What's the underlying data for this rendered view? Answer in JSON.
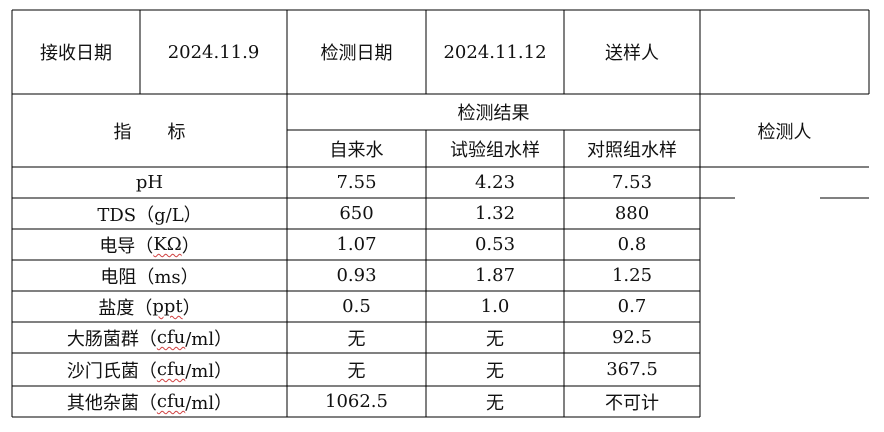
{
  "header": {
    "receive_date_label": "接收日期",
    "receive_date_value": "2024.11.9",
    "test_date_label": "检测日期",
    "test_date_value": "2024.11.12",
    "sender_label": "送样人",
    "sender_value": ""
  },
  "table_head": {
    "indicator_label": "指　　标",
    "results_label": "检测结果",
    "tester_label": "检测人",
    "columns": [
      "自来水",
      "试验组水样",
      "对照组水样"
    ]
  },
  "rows": [
    {
      "name": "pH",
      "unit": "",
      "values": [
        "7.55",
        "4.23",
        "7.53"
      ]
    },
    {
      "name": "TDS（g/L）",
      "unit": "",
      "values": [
        "650",
        "1.32",
        "880"
      ]
    },
    {
      "name": "电导（",
      "unit": "KΩ",
      "suffix": "）",
      "values": [
        "1.07",
        "0.53",
        "0.8"
      ]
    },
    {
      "name": "电阻（ms）",
      "unit": "",
      "values": [
        "0.93",
        "1.87",
        "1.25"
      ]
    },
    {
      "name": "盐度（",
      "unit": "ppt",
      "suffix": "）",
      "values": [
        "0.5",
        "1.0",
        "0.7"
      ]
    },
    {
      "name": "大肠菌群（",
      "unit": "cfu",
      "suffix": "/ml）",
      "values": [
        "无",
        "无",
        "92.5"
      ]
    },
    {
      "name": "沙门氏菌（",
      "unit": "cfu",
      "suffix": "/ml）",
      "values": [
        "无",
        "无",
        "367.5"
      ]
    },
    {
      "name": "其他杂菌（",
      "unit": "cfu",
      "suffix": "/ml）",
      "values": [
        "1062.5",
        "无",
        "不可计"
      ]
    }
  ]
}
